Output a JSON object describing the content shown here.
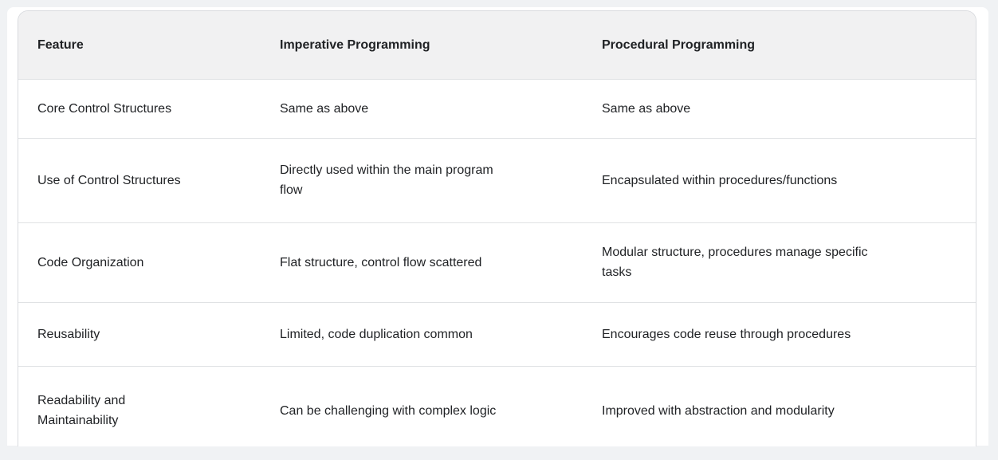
{
  "colors": {
    "page_background": "#f0f2f4",
    "card_background": "#ffffff",
    "header_background": "#f1f1f2",
    "border": "#d8dade",
    "row_divider": "#e0e2e4",
    "text": "#1f2124"
  },
  "table": {
    "columns": [
      {
        "label": "Feature"
      },
      {
        "label": "Imperative Programming"
      },
      {
        "label": "Procedural Programming"
      }
    ],
    "rows": [
      {
        "feature": "Core Control Structures",
        "imperative": "Same as above",
        "procedural": "Same as above"
      },
      {
        "feature": "Use of Control Structures",
        "imperative": "Directly used within the main program\nflow",
        "procedural": "Encapsulated within procedures/functions"
      },
      {
        "feature": "Code Organization",
        "imperative": "Flat structure, control flow scattered",
        "procedural": "Modular structure, procedures manage specific\ntasks"
      },
      {
        "feature": "Reusability",
        "imperative": "Limited, code duplication common",
        "procedural": "Encourages code reuse through procedures"
      },
      {
        "feature": "Readability and\nMaintainability",
        "imperative": "Can be challenging with complex logic",
        "procedural": "Improved with abstraction and modularity"
      }
    ]
  }
}
